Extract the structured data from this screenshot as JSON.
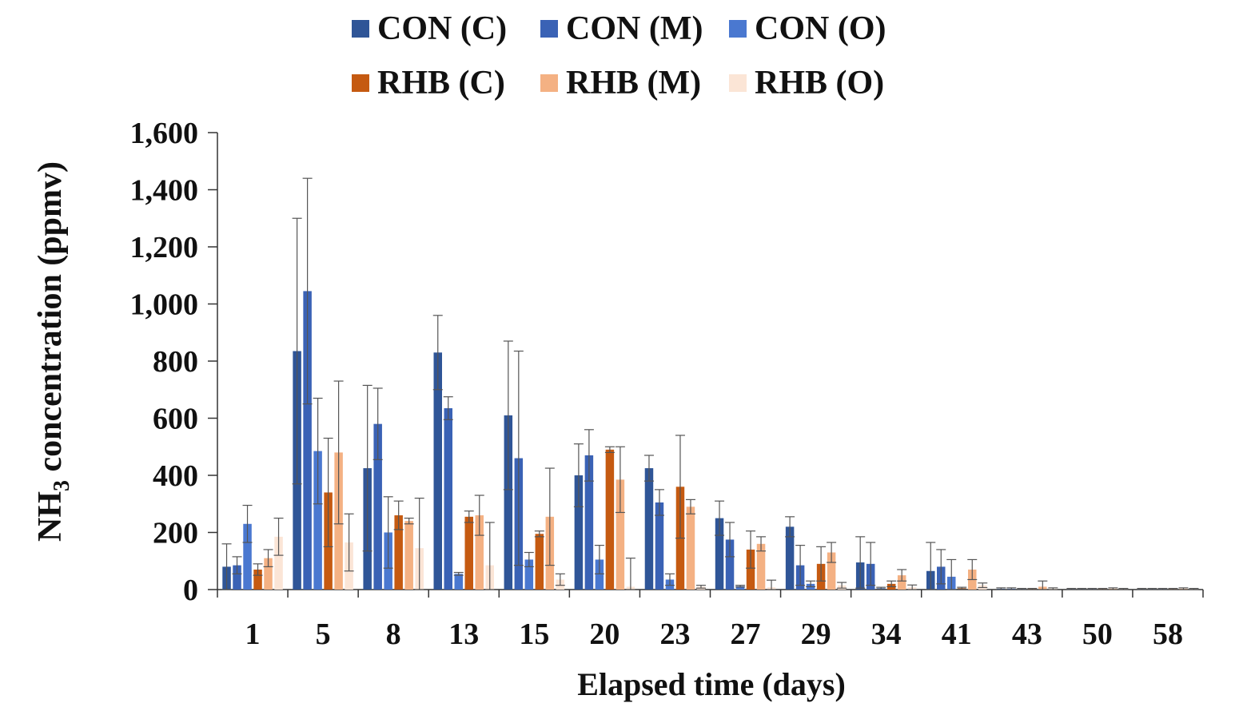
{
  "chart_data": {
    "type": "bar",
    "title": "",
    "xlabel": "Elapsed time (days)",
    "ylabel_main": "NH",
    "ylabel_sub": "3",
    "ylabel_rest": " concentration (ppmv)",
    "ylim": [
      0,
      1600
    ],
    "ytick_labels": [
      "0",
      "200",
      "400",
      "600",
      "800",
      "1,000",
      "1,200",
      "1,400",
      "1,600"
    ],
    "ytick_values": [
      0,
      200,
      400,
      600,
      800,
      1000,
      1200,
      1400,
      1600
    ],
    "categories": [
      "1",
      "5",
      "8",
      "13",
      "15",
      "20",
      "23",
      "27",
      "29",
      "34",
      "41",
      "43",
      "50",
      "58"
    ],
    "series": [
      {
        "name": "CON (C)",
        "color": "#2f5597",
        "values": [
          80,
          835,
          425,
          830,
          610,
          400,
          425,
          250,
          220,
          95,
          65,
          3,
          2,
          2
        ],
        "errors": [
          80,
          465,
          290,
          130,
          260,
          110,
          45,
          60,
          35,
          90,
          100,
          3,
          2,
          2
        ]
      },
      {
        "name": "CON (M)",
        "color": "#3a62b5",
        "values": [
          85,
          1045,
          580,
          635,
          460,
          470,
          305,
          175,
          85,
          90,
          80,
          3,
          2,
          2
        ],
        "errors": [
          30,
          395,
          125,
          40,
          375,
          90,
          45,
          60,
          70,
          75,
          60,
          3,
          2,
          2
        ]
      },
      {
        "name": "CON (O)",
        "color": "#4a78d0",
        "values": [
          230,
          485,
          200,
          55,
          105,
          105,
          35,
          12,
          20,
          5,
          45,
          2,
          2,
          2
        ],
        "errors": [
          65,
          185,
          125,
          5,
          25,
          50,
          20,
          3,
          10,
          3,
          60,
          2,
          2,
          2
        ]
      },
      {
        "name": "RHB (C)",
        "color": "#c55a11",
        "values": [
          70,
          340,
          260,
          255,
          195,
          490,
          360,
          140,
          90,
          20,
          5,
          2,
          2,
          2
        ],
        "errors": [
          20,
          190,
          50,
          20,
          10,
          10,
          180,
          65,
          60,
          10,
          3,
          2,
          2,
          2
        ]
      },
      {
        "name": "RHB (M)",
        "color": "#f4b183",
        "values": [
          110,
          480,
          240,
          260,
          255,
          385,
          290,
          160,
          130,
          50,
          70,
          10,
          3,
          3
        ],
        "errors": [
          30,
          250,
          10,
          70,
          170,
          115,
          25,
          25,
          35,
          20,
          35,
          20,
          3,
          3
        ]
      },
      {
        "name": "RHB (O)",
        "color": "#fbe5d6",
        "values": [
          185,
          165,
          145,
          85,
          35,
          10,
          10,
          8,
          15,
          8,
          15,
          3,
          2,
          2
        ],
        "errors": [
          65,
          100,
          175,
          150,
          20,
          100,
          5,
          25,
          10,
          8,
          8,
          3,
          2,
          2
        ]
      }
    ]
  }
}
